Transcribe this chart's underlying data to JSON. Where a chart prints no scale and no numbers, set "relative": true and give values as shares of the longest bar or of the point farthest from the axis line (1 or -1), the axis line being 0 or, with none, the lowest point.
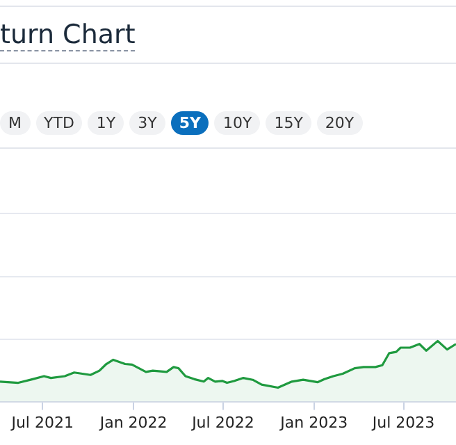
{
  "chart_data": {
    "type": "area",
    "title": "turn Chart",
    "annotations": [
      "M",
      "YTD",
      "1Y",
      "3Y",
      "5Y",
      "10Y",
      "15Y",
      "20Y"
    ],
    "relative": true,
    "legend": false,
    "marker": "none",
    "x": [
      "2021-04-06",
      "2021-05-13",
      "2021-06-11",
      "2021-07-04",
      "2021-07-18",
      "2021-08-15",
      "2021-09-03",
      "2021-10-06",
      "2021-10-24",
      "2021-11-07",
      "2021-11-21",
      "2021-12-15",
      "2021-12-29",
      "2022-01-12",
      "2022-01-26",
      "2022-02-09",
      "2022-03-09",
      "2022-03-23",
      "2022-04-02",
      "2022-04-16",
      "2022-05-04",
      "2022-05-23",
      "2022-06-01",
      "2022-06-15",
      "2022-06-30",
      "2022-07-09",
      "2022-07-23",
      "2022-08-11",
      "2022-08-30",
      "2022-09-17",
      "2022-10-20",
      "2022-11-17",
      "2022-12-10",
      "2023-01-08",
      "2023-01-22",
      "2023-02-09",
      "2023-02-28",
      "2023-03-24",
      "2023-04-11",
      "2023-05-05",
      "2023-05-19",
      "2023-06-02",
      "2023-06-16",
      "2023-06-25",
      "2023-07-14",
      "2023-08-02",
      "2023-08-16",
      "2023-09-08",
      "2023-09-27",
      "2023-10-15"
    ],
    "xlim": [
      "2021-04-06",
      "2023-10-15"
    ],
    "xticks": [
      {
        "value": "2021-07-01",
        "label": "Jul 2021"
      },
      {
        "value": "2022-01-01",
        "label": "Jan 2022"
      },
      {
        "value": "2022-07-01",
        "label": "Jul 2022"
      },
      {
        "value": "2023-01-01",
        "label": "Jan 2023"
      },
      {
        "value": "2023-07-01",
        "label": "Jul 2023"
      }
    ],
    "series": [
      {
        "color": "#1f9a3f",
        "values": [
          0.33,
          0.31,
          0.37,
          0.42,
          0.39,
          0.42,
          0.48,
          0.44,
          0.51,
          0.62,
          0.69,
          0.62,
          0.61,
          0.55,
          0.49,
          0.51,
          0.49,
          0.57,
          0.55,
          0.42,
          0.37,
          0.33,
          0.39,
          0.33,
          0.34,
          0.31,
          0.34,
          0.39,
          0.36,
          0.28,
          0.23,
          0.33,
          0.36,
          0.32,
          0.37,
          0.42,
          0.46,
          0.55,
          0.57,
          0.57,
          0.6,
          0.8,
          0.82,
          0.89,
          0.89,
          0.95,
          0.84,
          1.0,
          0.86,
          0.95
        ]
      }
    ]
  }
}
